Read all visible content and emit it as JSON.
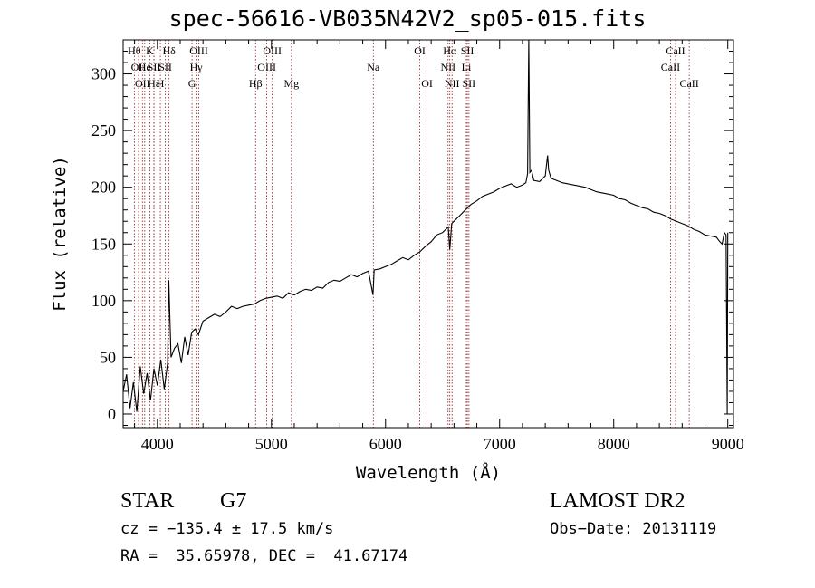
{
  "chart_data": {
    "type": "line",
    "title": "spec-56616-VB035N42V2_sp05-015.fits",
    "xlabel": "Wavelength (Å)",
    "ylabel": "Flux (relative)",
    "xlim": [
      3700,
      9050
    ],
    "ylim": [
      -12,
      330
    ],
    "xticks": [
      4000,
      5000,
      6000,
      7000,
      8000,
      9000
    ],
    "yticks": [
      0,
      50,
      100,
      150,
      200,
      250,
      300
    ],
    "grid": false,
    "line_color": "#000000",
    "marker_color": "#8b1a1a",
    "series": [
      {
        "x": [
          3700,
          3730,
          3760,
          3790,
          3820,
          3850,
          3880,
          3910,
          3940,
          3970,
          4000,
          4030,
          4060,
          4090,
          4100,
          4120,
          4150,
          4180,
          4210,
          4240,
          4270,
          4300,
          4330,
          4360,
          4400,
          4450,
          4500,
          4550,
          4600,
          4650,
          4700,
          4750,
          4800,
          4850,
          4900,
          4950,
          5000,
          5050,
          5100,
          5150,
          5200,
          5250,
          5300,
          5350,
          5400,
          5450,
          5500,
          5550,
          5600,
          5650,
          5700,
          5750,
          5800,
          5850,
          5890,
          5900,
          5950,
          6000,
          6050,
          6100,
          6150,
          6200,
          6250,
          6300,
          6350,
          6400,
          6450,
          6500,
          6550,
          6563,
          6580,
          6600,
          6650,
          6700,
          6750,
          6800,
          6850,
          6900,
          6950,
          7000,
          7050,
          7100,
          7150,
          7200,
          7230,
          7245,
          7255,
          7265,
          7280,
          7300,
          7350,
          7400,
          7420,
          7430,
          7450,
          7500,
          7550,
          7600,
          7650,
          7700,
          7750,
          7800,
          7850,
          7900,
          7950,
          8000,
          8050,
          8100,
          8150,
          8200,
          8250,
          8300,
          8350,
          8400,
          8450,
          8500,
          8550,
          8600,
          8650,
          8700,
          8750,
          8800,
          8850,
          8900,
          8930,
          8950,
          8970,
          8985,
          8995,
          9000
        ],
        "y": [
          20,
          35,
          5,
          28,
          2,
          42,
          18,
          36,
          12,
          40,
          25,
          48,
          22,
          45,
          118,
          50,
          58,
          62,
          45,
          68,
          52,
          72,
          75,
          70,
          82,
          85,
          88,
          86,
          90,
          95,
          93,
          95,
          96,
          97,
          100,
          102,
          103,
          104,
          102,
          107,
          105,
          108,
          110,
          109,
          112,
          111,
          116,
          118,
          117,
          120,
          123,
          121,
          124,
          126,
          105,
          127,
          128,
          130,
          132,
          135,
          138,
          136,
          140,
          143,
          148,
          152,
          158,
          160,
          165,
          145,
          168,
          170,
          175,
          180,
          185,
          188,
          192,
          194,
          196,
          199,
          201,
          203,
          200,
          202,
          204,
          212,
          330,
          213,
          215,
          206,
          205,
          210,
          228,
          215,
          208,
          206,
          204,
          203,
          202,
          201,
          200,
          198,
          196,
          195,
          194,
          193,
          190,
          189,
          186,
          184,
          182,
          181,
          178,
          177,
          175,
          172,
          170,
          168,
          166,
          163,
          161,
          158,
          157,
          156,
          152,
          150,
          160,
          158,
          0,
          160
        ]
      }
    ],
    "lines": [
      {
        "x": 3798,
        "label": "Hθ",
        "row": 0
      },
      {
        "x": 3835,
        "label": "OII",
        "row": 1
      },
      {
        "x": 3869,
        "label": "OII",
        "row": 2
      },
      {
        "x": 3889,
        "label": "He",
        "row": 1
      },
      {
        "x": 3934,
        "label": "K",
        "row": 0
      },
      {
        "x": 3970,
        "label": "Hε",
        "row": 2
      },
      {
        "x": 3970,
        "label": "SII",
        "row": 1
      },
      {
        "x": 4070,
        "label": "SII",
        "row": 1
      },
      {
        "x": 4102,
        "label": "Hδ",
        "row": 0
      },
      {
        "x": 4026,
        "label": "H",
        "row": 2
      },
      {
        "x": 4304,
        "label": "G",
        "row": 2
      },
      {
        "x": 4340,
        "label": "Hγ",
        "row": 1
      },
      {
        "x": 4363,
        "label": "OIII",
        "row": 0
      },
      {
        "x": 4861,
        "label": "Hβ",
        "row": 2
      },
      {
        "x": 4959,
        "label": "OIII",
        "row": 1
      },
      {
        "x": 5007,
        "label": "OIII",
        "row": 0
      },
      {
        "x": 5175,
        "label": "Mg",
        "row": 2
      },
      {
        "x": 5893,
        "label": "Na",
        "row": 1
      },
      {
        "x": 6300,
        "label": "OI",
        "row": 0
      },
      {
        "x": 6364,
        "label": "OI",
        "row": 2
      },
      {
        "x": 6548,
        "label": "NII",
        "row": 1
      },
      {
        "x": 6563,
        "label": "Hα",
        "row": 0
      },
      {
        "x": 6583,
        "label": "NII",
        "row": 2
      },
      {
        "x": 6708,
        "label": "Li",
        "row": 1
      },
      {
        "x": 6717,
        "label": "SII",
        "row": 0
      },
      {
        "x": 6731,
        "label": "SII",
        "row": 2
      },
      {
        "x": 8498,
        "label": "CaII",
        "row": 1
      },
      {
        "x": 8542,
        "label": "CaII",
        "row": 0
      },
      {
        "x": 8662,
        "label": "CaII",
        "row": 2
      }
    ]
  },
  "info": {
    "class": "STAR",
    "subclass": "G7",
    "survey": "LAMOST DR2",
    "cz": "cz = −135.4 ± 17.5 km/s",
    "obs_date": "Obs−Date: 20131119",
    "coords": "RA =  35.65978, DEC =  41.67174"
  }
}
